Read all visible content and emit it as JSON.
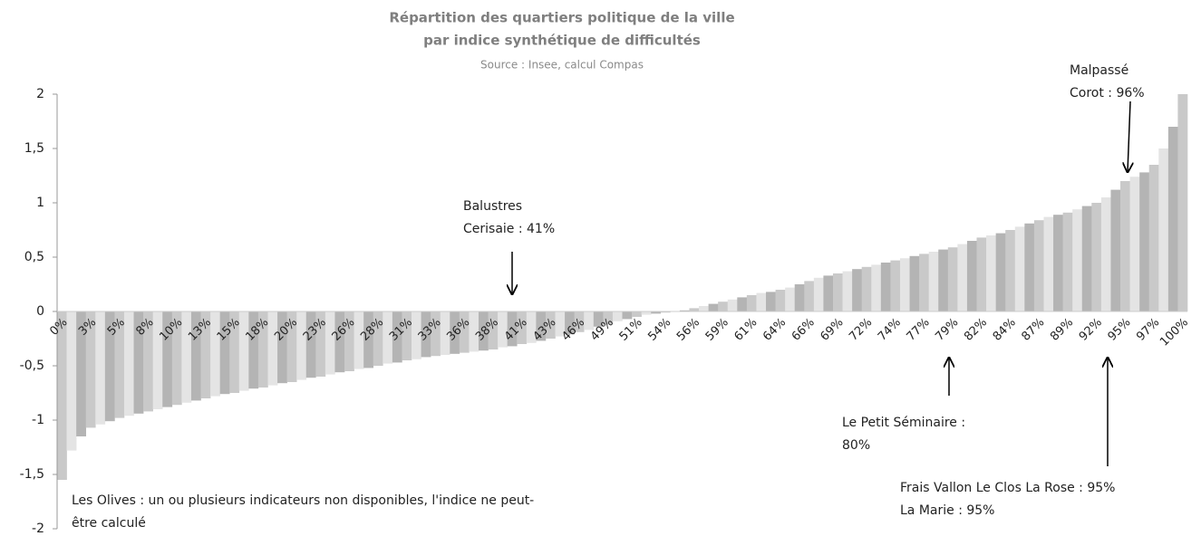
{
  "chart_data": {
    "type": "bar",
    "title": [
      "Répartition des quartiers politique de la ville",
      "par indice synthétique de difficultés"
    ],
    "subtitle": "Source : Insee, calcul Compas",
    "categories": [
      "0%",
      null,
      null,
      "3%",
      null,
      null,
      "5%",
      null,
      null,
      "8%",
      null,
      null,
      "10%",
      null,
      null,
      "13%",
      null,
      null,
      "15%",
      null,
      null,
      "18%",
      null,
      null,
      "20%",
      null,
      null,
      "23%",
      null,
      null,
      "26%",
      null,
      null,
      "28%",
      null,
      null,
      "31%",
      null,
      null,
      "33%",
      null,
      null,
      "36%",
      null,
      null,
      "38%",
      null,
      null,
      "41%",
      null,
      null,
      "43%",
      null,
      null,
      "46%",
      null,
      null,
      "49%",
      null,
      null,
      "51%",
      null,
      null,
      "54%",
      null,
      null,
      "56%",
      null,
      null,
      "59%",
      null,
      null,
      "61%",
      null,
      null,
      "64%",
      null,
      null,
      "66%",
      null,
      null,
      "69%",
      null,
      null,
      "72%",
      null,
      null,
      "74%",
      null,
      null,
      "77%",
      null,
      null,
      "79%",
      null,
      null,
      "82%",
      null,
      null,
      "84%",
      null,
      null,
      "87%",
      null,
      null,
      "89%",
      null,
      null,
      "92%",
      null,
      null,
      "95%",
      null,
      null,
      "97%",
      null,
      null,
      "100%"
    ],
    "values": [
      -1.55,
      -1.28,
      -1.15,
      -1.07,
      -1.04,
      -1.01,
      -0.98,
      -0.96,
      -0.94,
      -0.92,
      -0.9,
      -0.88,
      -0.86,
      -0.84,
      -0.82,
      -0.8,
      -0.78,
      -0.76,
      -0.75,
      -0.73,
      -0.71,
      -0.7,
      -0.68,
      -0.66,
      -0.65,
      -0.63,
      -0.61,
      -0.6,
      -0.58,
      -0.56,
      -0.55,
      -0.53,
      -0.52,
      -0.5,
      -0.48,
      -0.47,
      -0.45,
      -0.44,
      -0.42,
      -0.41,
      -0.4,
      -0.39,
      -0.38,
      -0.37,
      -0.36,
      -0.35,
      -0.33,
      -0.32,
      -0.3,
      -0.29,
      -0.27,
      -0.25,
      -0.23,
      -0.21,
      -0.19,
      -0.17,
      -0.14,
      -0.12,
      -0.09,
      -0.07,
      -0.05,
      -0.03,
      -0.02,
      -0.01,
      0.0,
      0.01,
      0.03,
      0.05,
      0.07,
      0.09,
      0.11,
      0.13,
      0.15,
      0.17,
      0.18,
      0.2,
      0.22,
      0.25,
      0.28,
      0.31,
      0.33,
      0.35,
      0.37,
      0.39,
      0.41,
      0.43,
      0.45,
      0.47,
      0.49,
      0.51,
      0.53,
      0.55,
      0.57,
      0.59,
      0.62,
      0.65,
      0.68,
      0.7,
      0.72,
      0.75,
      0.78,
      0.81,
      0.84,
      0.87,
      0.89,
      0.91,
      0.94,
      0.97,
      1.0,
      1.05,
      1.12,
      1.2,
      1.24,
      1.28,
      1.35,
      1.5,
      1.7,
      2.0
    ],
    "colors": [
      "#c9c9c9",
      "#e4e4e4",
      "#b4b4b4"
    ],
    "ylim": [
      -2,
      2
    ],
    "yticks": [
      2,
      {
        "value": 1.5,
        "label": "1,5"
      },
      1,
      {
        "value": 0.5,
        "label": "0,5"
      },
      0,
      {
        "value": -0.5,
        "label": "-0,5"
      },
      -1,
      {
        "value": -1.5,
        "label": "-1,5"
      },
      -2
    ],
    "annotations": [
      {
        "lines": [
          "Balustres",
          "Cerisaie : 41%"
        ]
      },
      {
        "lines": [
          "Malpassé",
          "Corot : 96%"
        ]
      },
      {
        "lines": [
          "Le Petit Séminaire :",
          "80%"
        ]
      },
      {
        "lines": [
          "Frais Vallon Le Clos La Rose : 95%",
          "La Marie : 95%"
        ]
      },
      {
        "lines": [
          "Les Olives : un ou plusieurs indicateurs non disponibles, l'indice ne peut-",
          "être calculé"
        ]
      }
    ]
  }
}
